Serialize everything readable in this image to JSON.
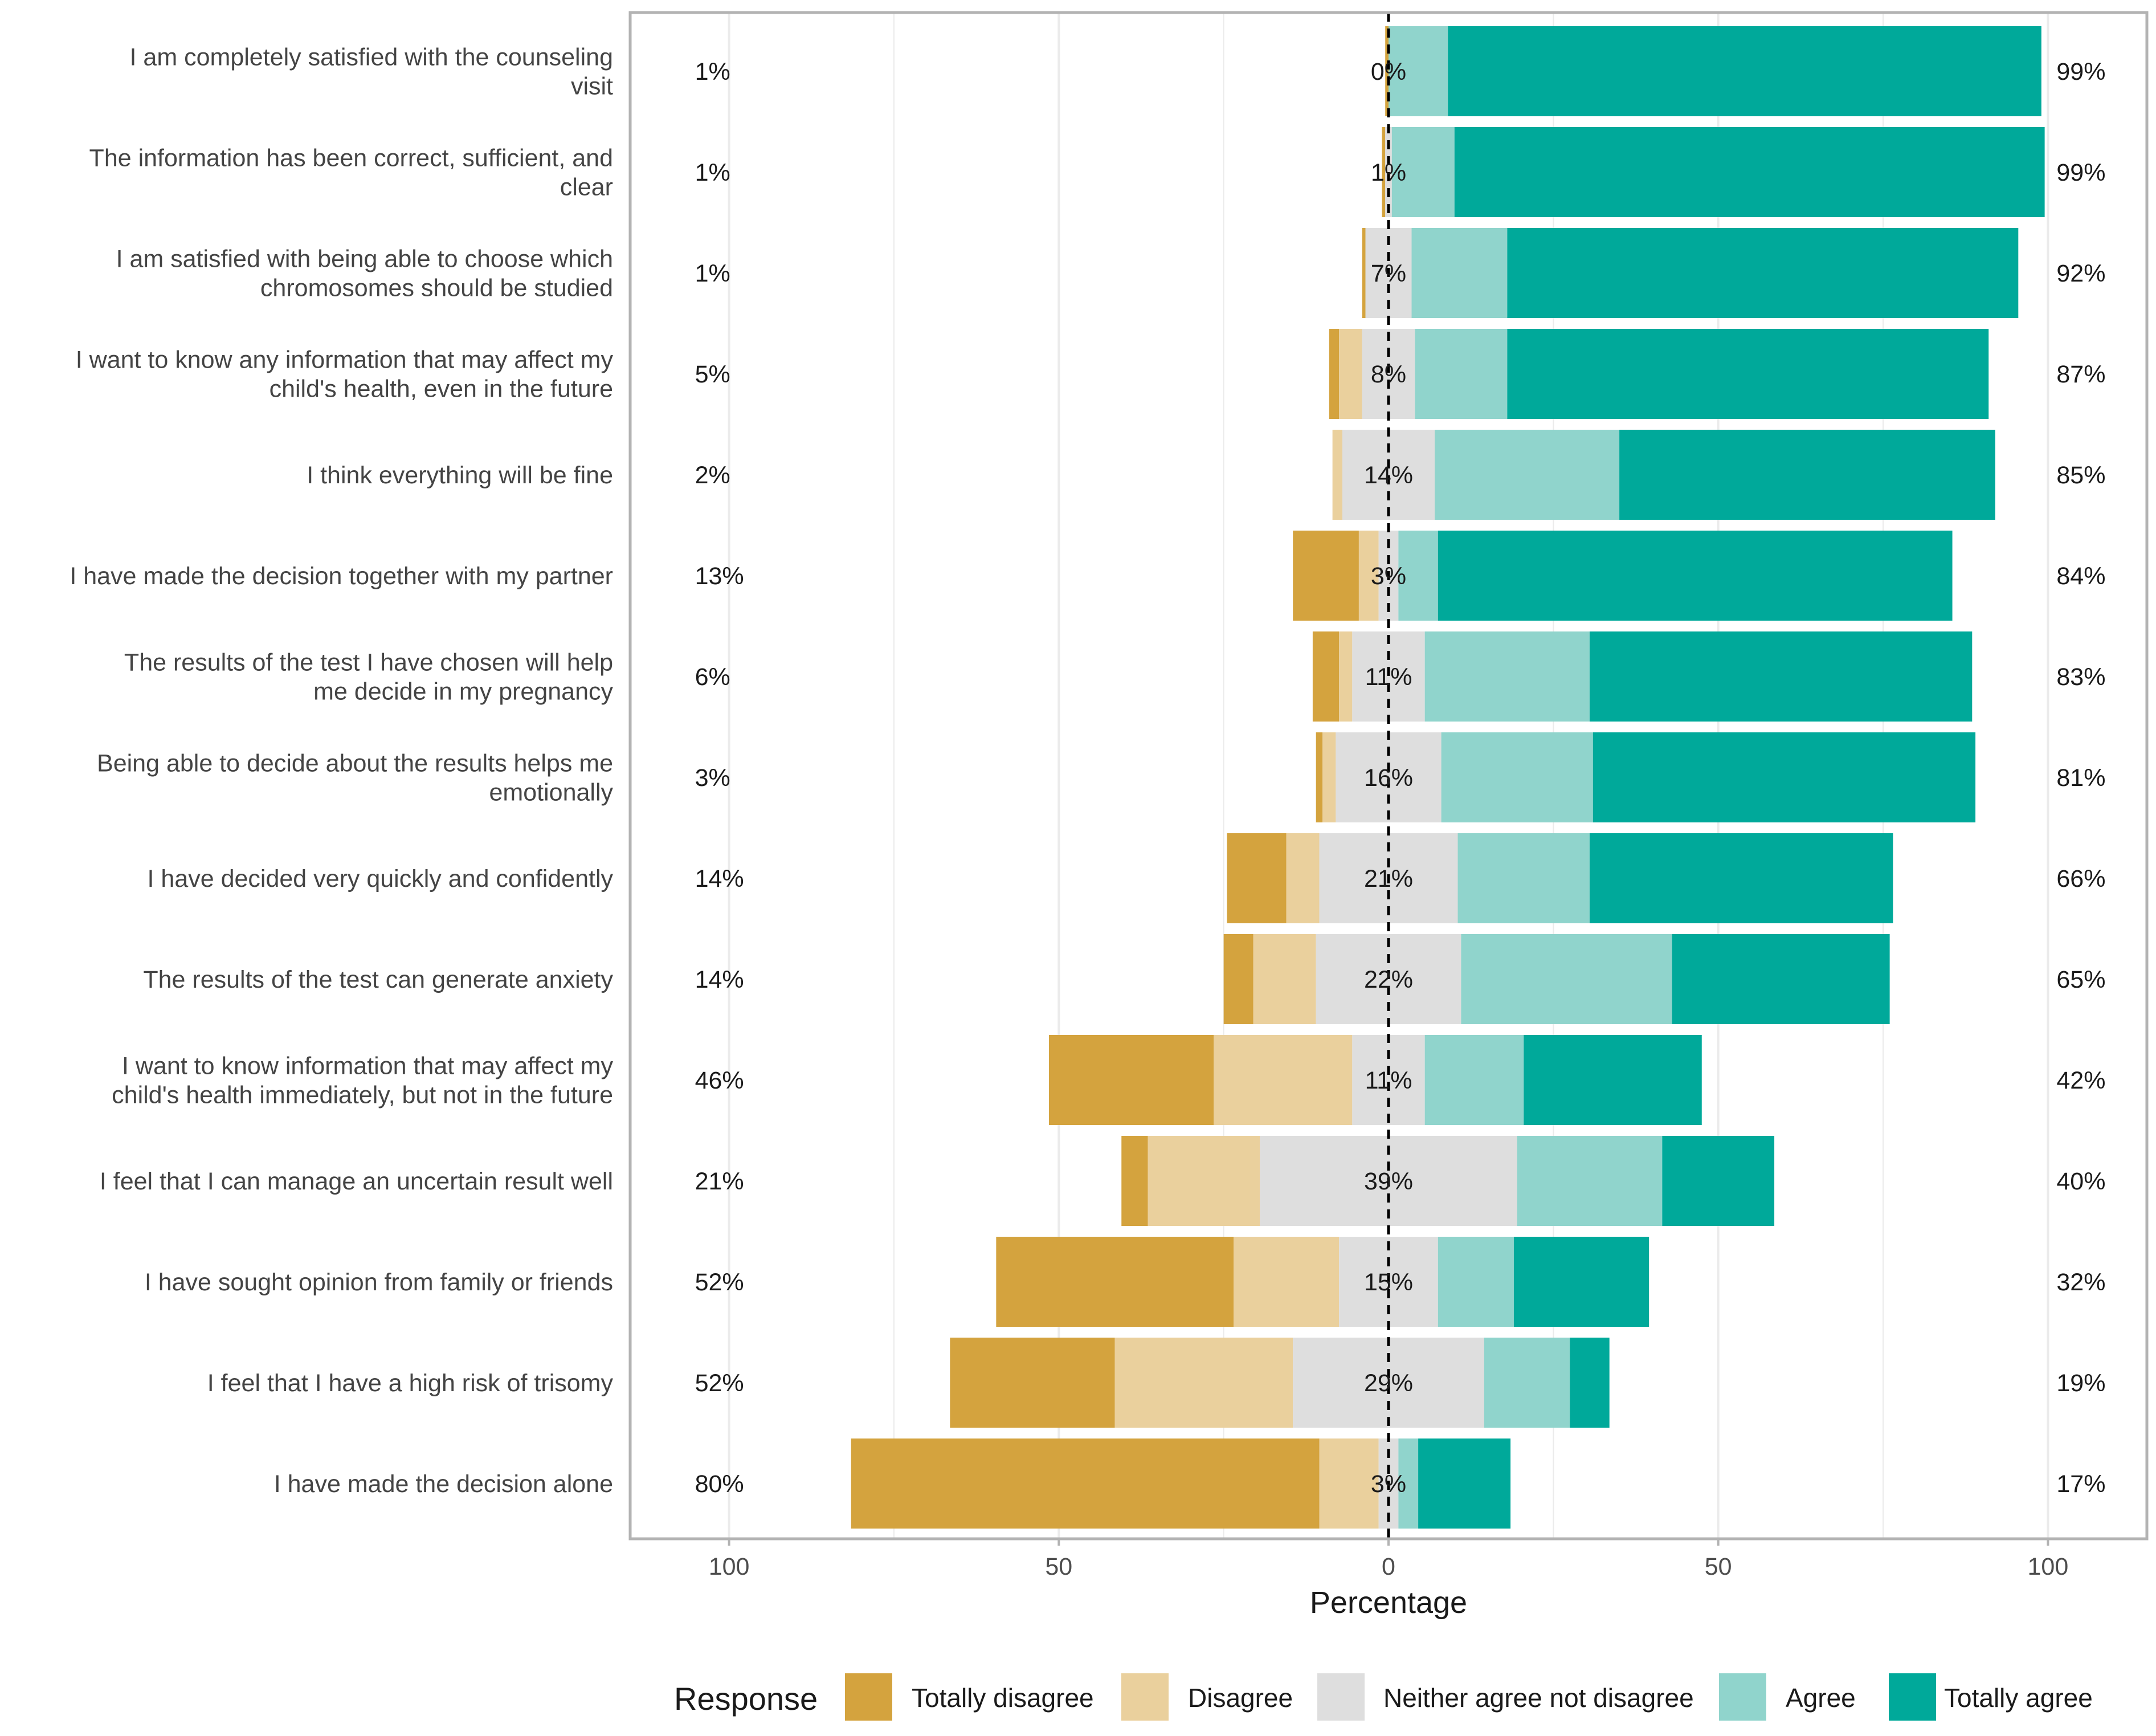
{
  "chart_data": {
    "type": "bar",
    "subtype": "diverging-stacked-likert",
    "xlabel": "Percentage",
    "xlim": [
      -115,
      115
    ],
    "x_ticks": [
      -100,
      -50,
      0,
      50,
      100
    ],
    "x_tick_labels": [
      "100",
      "50",
      "0",
      "50",
      "100"
    ],
    "legend_title": "Response",
    "legend_position": "bottom",
    "colors": {
      "Totally disagree": "#D4A33E",
      "Disagree": "#EAD09D",
      "Neither agree not disagree": "#DEDEDE",
      "Agree": "#90D4CC",
      "Totally agree": "#00A99A"
    },
    "categories": [
      "I am completely satisfied with the counseling visit",
      "The information has been correct, sufficient, and clear",
      "I am satisfied with being able to choose which chromosomes should be studied",
      "I want to know any information that may affect my child's health, even in the future",
      "I think everything will be fine",
      "I have made the decision together with my partner",
      "The results of the test I have chosen will help me decide in my pregnancy",
      "Being able to decide about the results helps me emotionally",
      "I have decided very quickly and confidently",
      "The results of the test can generate anxiety",
      "I want to know information that may affect my child's health immediately, but not in the future",
      "I feel that I can manage an uncertain result well",
      "I have sought opinion from family or friends",
      "I feel that I have a high risk of trisomy",
      "I have made the decision alone"
    ],
    "category_label_lines": [
      [
        "I am completely satisfied with the counseling",
        "visit"
      ],
      [
        "The information has been correct, sufficient, and",
        "clear"
      ],
      [
        "I am satisfied with being able to choose which",
        "chromosomes should be studied"
      ],
      [
        "I want to know any information that may affect my",
        "child's health, even in the future"
      ],
      [
        "I think everything will be fine"
      ],
      [
        "I have made the decision together with my partner"
      ],
      [
        "The results of the test I have chosen will help",
        "me decide in my pregnancy"
      ],
      [
        "Being able to decide about the results helps me",
        "emotionally"
      ],
      [
        "I have decided very quickly and confidently"
      ],
      [
        "The results of the test can generate anxiety"
      ],
      [
        "I want to know information that may affect my",
        "child's health immediately, but not in the future"
      ],
      [
        "I feel that I can manage an uncertain result well"
      ],
      [
        "I have sought opinion from family or friends"
      ],
      [
        "I feel that I have a high risk of trisomy"
      ],
      [
        "I have made the decision alone"
      ]
    ],
    "series": [
      {
        "name": "Totally disagree",
        "values": [
          0.5,
          0.5,
          0.5,
          1.5,
          0,
          10,
          4,
          1,
          9,
          4.5,
          25,
          4,
          36,
          25,
          71
        ]
      },
      {
        "name": "Disagree",
        "values": [
          0,
          0,
          0,
          3.5,
          1.5,
          3,
          2,
          2,
          5,
          9.5,
          21,
          17,
          16,
          27,
          9
        ]
      },
      {
        "name": "Neither agree not disagree",
        "values": [
          0,
          1,
          7,
          8,
          14,
          3,
          11,
          16,
          21,
          22,
          11,
          39,
          15,
          29,
          3
        ]
      },
      {
        "name": "Agree",
        "values": [
          9,
          9.5,
          14.5,
          14,
          28,
          6,
          25,
          23,
          20,
          32,
          15,
          22,
          11.5,
          13,
          3
        ]
      },
      {
        "name": "Totally agree",
        "values": [
          90,
          89.5,
          77.5,
          73,
          57,
          78,
          58,
          58,
          46,
          33,
          27,
          17,
          20.5,
          6,
          14
        ]
      }
    ],
    "left_labels": [
      "1%",
      "1%",
      "1%",
      "5%",
      "2%",
      "13%",
      "6%",
      "3%",
      "14%",
      "14%",
      "46%",
      "21%",
      "52%",
      "52%",
      "80%"
    ],
    "center_labels": [
      "0%",
      "1%",
      "7%",
      "8%",
      "14%",
      "3%",
      "11%",
      "16%",
      "21%",
      "22%",
      "11%",
      "39%",
      "15%",
      "29%",
      "3%"
    ],
    "right_labels": [
      "99%",
      "99%",
      "92%",
      "87%",
      "85%",
      "84%",
      "83%",
      "81%",
      "66%",
      "65%",
      "42%",
      "40%",
      "32%",
      "19%",
      "17%"
    ]
  }
}
